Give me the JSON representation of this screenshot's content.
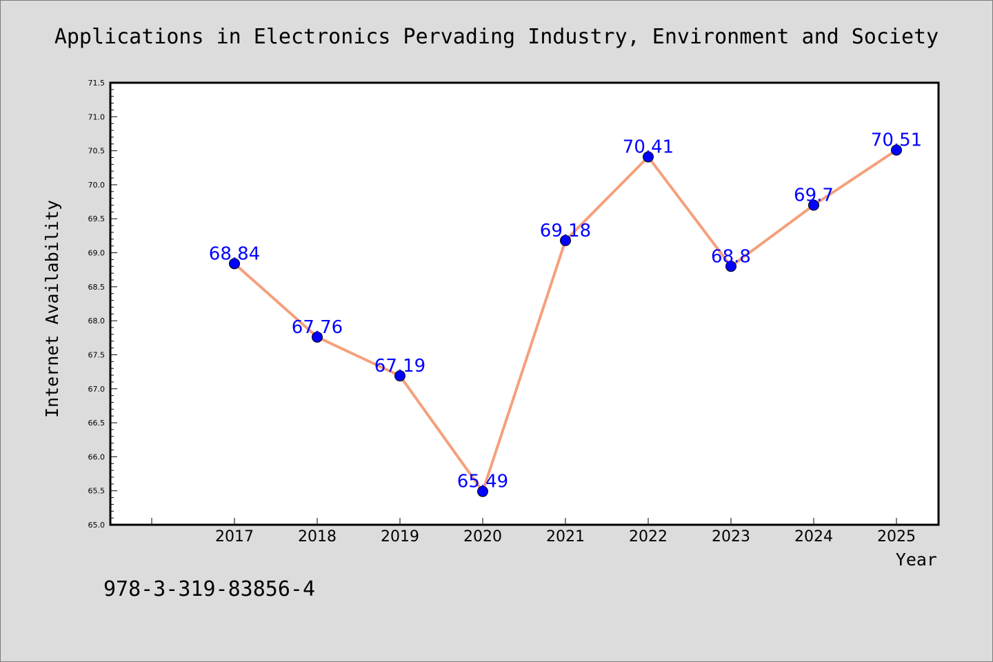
{
  "chart_data": {
    "type": "line",
    "title": "Applications in Electronics Pervading Industry, Environment and Society",
    "xlabel": "Year",
    "ylabel": "Internet Availability",
    "categories": [
      "2017",
      "2018",
      "2019",
      "2020",
      "2021",
      "2022",
      "2023",
      "2024",
      "2025"
    ],
    "series": [
      {
        "values": [
          68.84,
          67.76,
          67.19,
          65.49,
          69.18,
          70.41,
          68.8,
          69.7,
          70.51
        ],
        "point_labels": [
          "68.84",
          "67.76",
          "67.19",
          "65.49",
          "69.18",
          "70.41",
          "68.8",
          "69.7",
          "70.51"
        ]
      }
    ],
    "ylim": [
      65.0,
      71.5
    ],
    "y_ticks": [
      "65.0",
      "65.5",
      "66.0",
      "66.5",
      "67.0",
      "67.5",
      "68.0",
      "68.5",
      "69.0",
      "69.5",
      "70.0",
      "70.5",
      "71.0",
      "71.5"
    ],
    "grid": false,
    "legend": "none",
    "colors": {
      "line": "#f4a07c",
      "marker": "#0000ff",
      "label": "#0000ff",
      "background": "#dcdcdc",
      "plot_background": "#ffffff"
    }
  },
  "footer": {
    "isbn": "978-3-319-83856-4"
  }
}
